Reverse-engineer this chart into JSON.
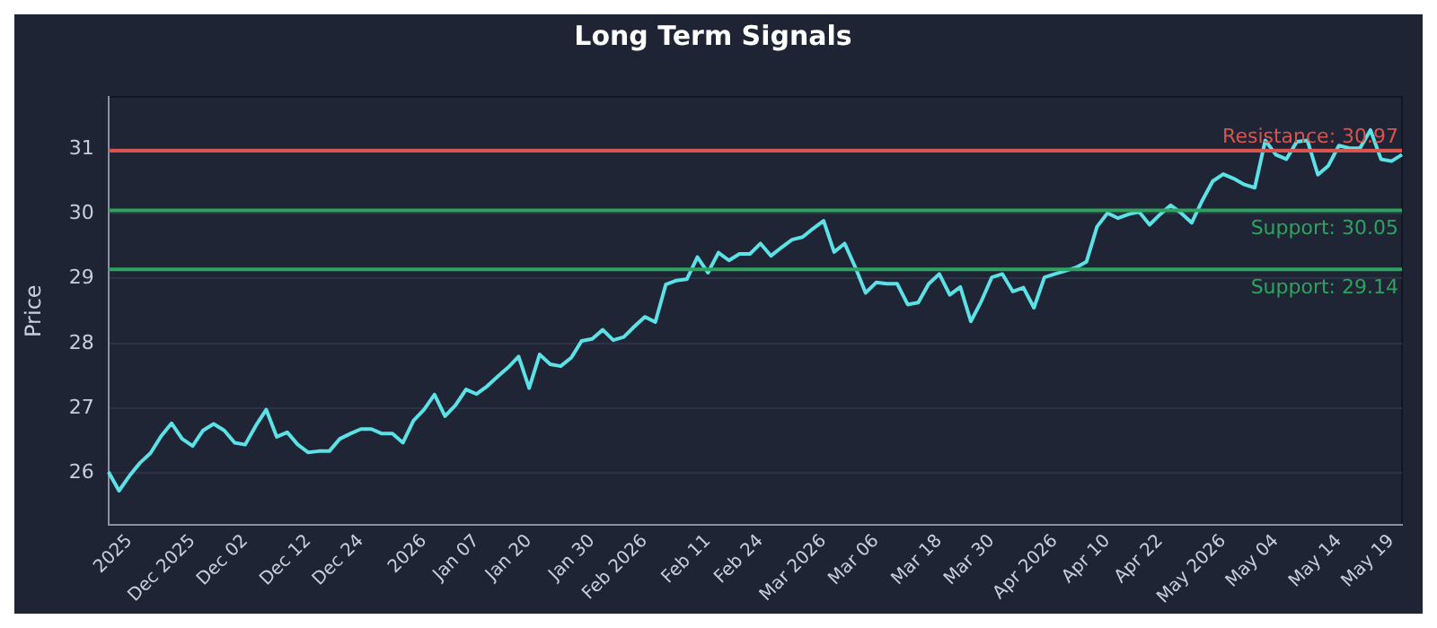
{
  "chart_data": {
    "type": "line",
    "title": "Long Term Signals",
    "ylabel": "Price",
    "categories": [
      null,
      null,
      "2025",
      null,
      null,
      null,
      null,
      null,
      "Dec 2025",
      null,
      null,
      null,
      null,
      "Dec 02",
      null,
      null,
      null,
      null,
      null,
      "Dec 12",
      null,
      null,
      null,
      null,
      "Dec 24",
      null,
      null,
      null,
      null,
      null,
      "2026",
      null,
      null,
      null,
      null,
      "Jan 07",
      null,
      null,
      null,
      null,
      "Jan 20",
      null,
      null,
      null,
      null,
      null,
      "Jan 30",
      null,
      null,
      null,
      null,
      "Feb 2026",
      null,
      null,
      null,
      null,
      null,
      "Feb 11",
      null,
      null,
      null,
      null,
      "Feb 24",
      null,
      null,
      null,
      null,
      null,
      "Mar 2026",
      null,
      null,
      null,
      null,
      "Mar 06",
      null,
      null,
      null,
      null,
      null,
      "Mar 18",
      null,
      null,
      null,
      null,
      "Mar 30",
      null,
      null,
      null,
      null,
      null,
      "Apr 2026",
      null,
      null,
      null,
      null,
      "Apr 10",
      null,
      null,
      null,
      null,
      "Apr 22",
      null,
      null,
      null,
      null,
      null,
      "May 2026",
      null,
      null,
      null,
      null,
      "May 04",
      null,
      null,
      null,
      null,
      null,
      "May 14",
      null,
      null,
      null,
      null,
      "May 19",
      null
    ],
    "series": [
      {
        "color": "#5ce1e6",
        "values": [
          26.02,
          25.73,
          25.96,
          26.16,
          26.31,
          26.57,
          26.77,
          26.53,
          26.42,
          26.66,
          26.76,
          26.66,
          26.47,
          26.44,
          26.73,
          26.98,
          26.56,
          26.63,
          26.44,
          26.32,
          26.34,
          26.34,
          26.53,
          26.61,
          26.68,
          26.68,
          26.61,
          26.61,
          26.47,
          26.81,
          26.98,
          27.21,
          26.88,
          27.05,
          27.29,
          27.22,
          27.34,
          27.49,
          27.63,
          27.8,
          27.31,
          27.83,
          27.68,
          27.65,
          27.78,
          28.04,
          28.07,
          28.21,
          28.05,
          28.1,
          28.26,
          28.41,
          28.33,
          28.91,
          28.97,
          28.99,
          29.33,
          29.09,
          29.4,
          29.28,
          29.38,
          29.38,
          29.54,
          29.35,
          29.48,
          29.6,
          29.64,
          29.77,
          29.89,
          29.41,
          29.54,
          29.18,
          28.78,
          28.94,
          28.92,
          28.92,
          28.6,
          28.63,
          28.92,
          29.07,
          28.75,
          28.87,
          28.34,
          28.65,
          29.02,
          29.07,
          28.8,
          28.86,
          28.55,
          29.02,
          29.07,
          29.12,
          29.17,
          29.26,
          29.8,
          30.01,
          29.93,
          29.99,
          30.03,
          29.83,
          29.99,
          30.13,
          30.01,
          29.86,
          30.2,
          30.5,
          30.61,
          30.54,
          30.45,
          30.4,
          31.13,
          30.91,
          30.84,
          31.11,
          31.13,
          30.6,
          30.74,
          31.05,
          31.01,
          31.01,
          31.29,
          30.84,
          30.81,
          30.91
        ]
      }
    ],
    "ylim": [
      25.2,
      31.8
    ],
    "yticks": [
      26,
      27,
      28,
      29,
      30,
      31
    ],
    "grid": "y",
    "marker": "none",
    "line_style": "solid",
    "ref_lines": [
      {
        "axis": "y",
        "value": 30.97,
        "label": "Resistance: 30.97",
        "color": "#d9534f"
      },
      {
        "axis": "y",
        "value": 30.05,
        "label": "Support: 30.05",
        "color": "#2ea35f"
      },
      {
        "axis": "y",
        "value": 29.14,
        "label": "Support: 29.14",
        "color": "#2ea35f"
      }
    ]
  }
}
